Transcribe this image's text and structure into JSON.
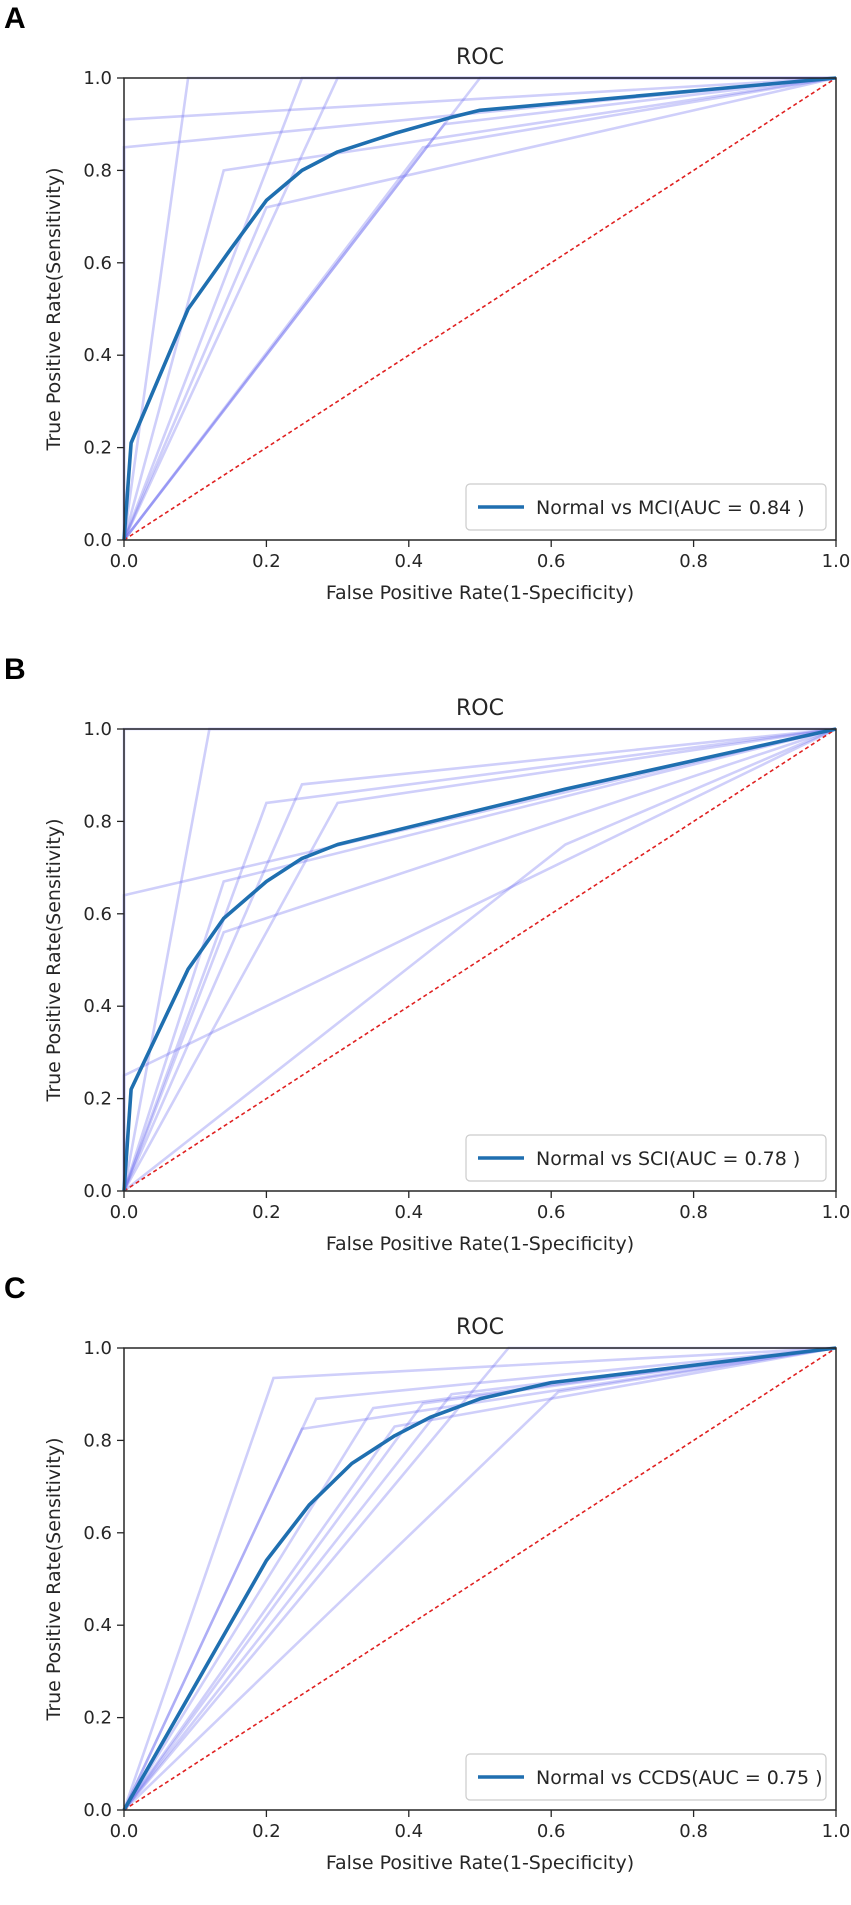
{
  "colors": {
    "main": "#1f6fb0",
    "fold": "#6a6af0",
    "chance": "#e02020",
    "axis": "#262626"
  },
  "chart_data": [
    {
      "panel": "A",
      "type": "line",
      "title": "ROC",
      "xlabel": "False Positive Rate(1-Specificity)",
      "ylabel": "True Positive Rate(Sensitivity)",
      "xlim": [
        0.0,
        1.0
      ],
      "ylim": [
        0.0,
        1.0
      ],
      "xticks": [
        "0.0",
        "0.2",
        "0.4",
        "0.6",
        "0.8",
        "1.0"
      ],
      "yticks": [
        "0.0",
        "0.2",
        "0.4",
        "0.6",
        "0.8",
        "1.0"
      ],
      "legend": {
        "label": "Normal vs MCI(AUC = 0.84 )",
        "position": "lower-right"
      },
      "mean_curve": {
        "x": [
          0.0,
          0.01,
          0.09,
          0.15,
          0.2,
          0.25,
          0.3,
          0.38,
          0.46,
          0.5,
          1.0
        ],
        "y": [
          0.0,
          0.21,
          0.5,
          0.63,
          0.735,
          0.8,
          0.84,
          0.88,
          0.915,
          0.93,
          1.0
        ]
      },
      "fold_curves": [
        {
          "x": [
            0.0,
            0.0,
            1.0
          ],
          "y": [
            0.0,
            0.91,
            1.0
          ]
        },
        {
          "x": [
            0.0,
            0.0,
            1.0
          ],
          "y": [
            0.0,
            0.85,
            1.0
          ]
        },
        {
          "x": [
            0.0,
            0.09,
            1.0
          ],
          "y": [
            0.0,
            1.0,
            1.0
          ]
        },
        {
          "x": [
            0.0,
            0.25,
            1.0
          ],
          "y": [
            0.0,
            1.0,
            1.0
          ]
        },
        {
          "x": [
            0.0,
            0.3,
            1.0
          ],
          "y": [
            0.0,
            1.0,
            1.0
          ]
        },
        {
          "x": [
            0.0,
            0.14,
            1.0
          ],
          "y": [
            0.0,
            0.8,
            1.0
          ]
        },
        {
          "x": [
            0.0,
            0.2,
            1.0
          ],
          "y": [
            0.0,
            0.72,
            1.0
          ]
        },
        {
          "x": [
            0.0,
            0.5,
            1.0
          ],
          "y": [
            0.0,
            1.0,
            1.0
          ]
        },
        {
          "x": [
            0.0,
            0.45,
            1.0
          ],
          "y": [
            0.0,
            0.9,
            1.0
          ]
        },
        {
          "x": [
            0.0,
            0.42,
            1.0
          ],
          "y": [
            0.0,
            0.85,
            1.0
          ]
        }
      ]
    },
    {
      "panel": "B",
      "type": "line",
      "title": "ROC",
      "xlabel": "False Positive Rate(1-Specificity)",
      "ylabel": "True Positive Rate(Sensitivity)",
      "xlim": [
        0.0,
        1.0
      ],
      "ylim": [
        0.0,
        1.0
      ],
      "xticks": [
        "0.0",
        "0.2",
        "0.4",
        "0.6",
        "0.8",
        "1.0"
      ],
      "yticks": [
        "0.0",
        "0.2",
        "0.4",
        "0.6",
        "0.8",
        "1.0"
      ],
      "legend": {
        "label": "Normal vs SCI(AUC = 0.78 )",
        "position": "lower-right"
      },
      "mean_curve": {
        "x": [
          0.0,
          0.01,
          0.09,
          0.14,
          0.2,
          0.25,
          0.3,
          0.62,
          1.0
        ],
        "y": [
          0.0,
          0.22,
          0.48,
          0.59,
          0.67,
          0.72,
          0.75,
          0.87,
          1.0
        ]
      },
      "fold_curves": [
        {
          "x": [
            0.0,
            0.0,
            1.0
          ],
          "y": [
            0.0,
            1.0,
            1.0
          ]
        },
        {
          "x": [
            0.0,
            0.0,
            1.0
          ],
          "y": [
            0.0,
            0.64,
            1.0
          ]
        },
        {
          "x": [
            0.0,
            0.12,
            1.0
          ],
          "y": [
            0.0,
            1.0,
            1.0
          ]
        },
        {
          "x": [
            0.0,
            0.2,
            1.0
          ],
          "y": [
            0.0,
            0.84,
            1.0
          ]
        },
        {
          "x": [
            0.0,
            0.25,
            1.0
          ],
          "y": [
            0.0,
            0.88,
            1.0
          ]
        },
        {
          "x": [
            0.0,
            0.3,
            1.0
          ],
          "y": [
            0.0,
            0.84,
            1.0
          ]
        },
        {
          "x": [
            0.0,
            0.14,
            1.0
          ],
          "y": [
            0.0,
            0.67,
            1.0
          ]
        },
        {
          "x": [
            0.0,
            0.0,
            1.0
          ],
          "y": [
            0.0,
            0.25,
            1.0
          ]
        },
        {
          "x": [
            0.0,
            0.62,
            1.0
          ],
          "y": [
            0.0,
            0.75,
            1.0
          ]
        },
        {
          "x": [
            0.0,
            0.14,
            1.0
          ],
          "y": [
            0.0,
            0.56,
            1.0
          ]
        }
      ]
    },
    {
      "panel": "C",
      "type": "line",
      "title": "ROC",
      "xlabel": "False Positive Rate(1-Specificity)",
      "ylabel": "True Positive Rate(Sensitivity)",
      "xlim": [
        0.0,
        1.0
      ],
      "ylim": [
        0.0,
        1.0
      ],
      "xticks": [
        "0.0",
        "0.2",
        "0.4",
        "0.6",
        "0.8",
        "1.0"
      ],
      "yticks": [
        "0.0",
        "0.2",
        "0.4",
        "0.6",
        "0.8",
        "1.0"
      ],
      "legend": {
        "label": "Normal vs CCDS(AUC = 0.75 )",
        "position": "lower-right"
      },
      "mean_curve": {
        "x": [
          0.0,
          0.1,
          0.2,
          0.26,
          0.32,
          0.38,
          0.43,
          0.5,
          0.6,
          1.0
        ],
        "y": [
          0.0,
          0.27,
          0.54,
          0.66,
          0.75,
          0.81,
          0.85,
          0.89,
          0.925,
          1.0
        ]
      },
      "fold_curves": [
        {
          "x": [
            0.0,
            0.21,
            1.0
          ],
          "y": [
            0.0,
            0.935,
            1.0
          ]
        },
        {
          "x": [
            0.0,
            0.27,
            1.0
          ],
          "y": [
            0.0,
            0.89,
            1.0
          ]
        },
        {
          "x": [
            0.0,
            0.54,
            1.0
          ],
          "y": [
            0.0,
            1.0,
            1.0
          ]
        },
        {
          "x": [
            0.0,
            0.25,
            1.0
          ],
          "y": [
            0.0,
            0.825,
            1.0
          ]
        },
        {
          "x": [
            0.0,
            0.35,
            1.0
          ],
          "y": [
            0.0,
            0.87,
            1.0
          ]
        },
        {
          "x": [
            0.0,
            0.42,
            1.0
          ],
          "y": [
            0.0,
            0.88,
            1.0
          ]
        },
        {
          "x": [
            0.0,
            0.46,
            1.0
          ],
          "y": [
            0.0,
            0.9,
            1.0
          ]
        },
        {
          "x": [
            0.0,
            0.38,
            1.0
          ],
          "y": [
            0.0,
            0.83,
            1.0
          ]
        },
        {
          "x": [
            0.0,
            0.61,
            1.0
          ],
          "y": [
            0.0,
            0.905,
            1.0
          ]
        }
      ]
    }
  ]
}
